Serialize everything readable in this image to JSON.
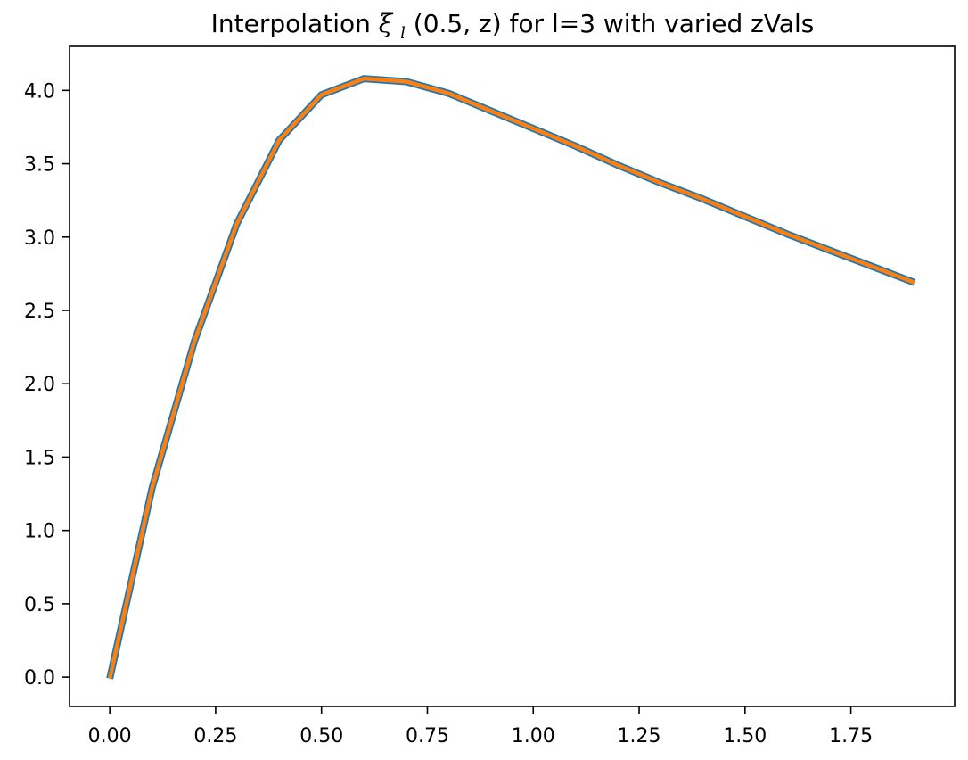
{
  "chart_data": {
    "type": "line",
    "title": {
      "prefix": "Interpolation ",
      "xi": "ξ",
      "sub": "l",
      "args": "(0.5, z)",
      "suffix": " for l=3 with varied zVals"
    },
    "xlabel": "",
    "ylabel": "",
    "xlim": [
      -0.095,
      1.995
    ],
    "ylim": [
      -0.2,
      4.3
    ],
    "xticks": [
      0.0,
      0.25,
      0.5,
      0.75,
      1.0,
      1.25,
      1.5,
      1.75
    ],
    "xtick_labels": [
      "0.00",
      "0.25",
      "0.50",
      "0.75",
      "1.00",
      "1.25",
      "1.50",
      "1.75"
    ],
    "yticks": [
      0.0,
      0.5,
      1.0,
      1.5,
      2.0,
      2.5,
      3.0,
      3.5,
      4.0
    ],
    "ytick_labels": [
      "0.0",
      "0.5",
      "1.0",
      "1.5",
      "2.0",
      "2.5",
      "3.0",
      "3.5",
      "4.0"
    ],
    "grid": false,
    "legend": "none",
    "series": [
      {
        "color": "#1f77b4",
        "x": [
          0.0,
          0.1,
          0.2,
          0.3,
          0.4,
          0.5,
          0.6,
          0.7,
          0.8,
          0.9,
          1.0,
          1.1,
          1.2,
          1.3,
          1.4,
          1.5,
          1.6,
          1.7,
          1.8,
          1.9
        ],
        "y": [
          -0.01,
          1.29,
          2.29,
          3.09,
          3.66,
          3.97,
          4.08,
          4.06,
          3.98,
          3.86,
          3.74,
          3.62,
          3.49,
          3.37,
          3.26,
          3.14,
          3.02,
          2.91,
          2.8,
          2.69
        ]
      },
      {
        "color": "#ff7f0e",
        "x": [
          0.0,
          0.1,
          0.2,
          0.3,
          0.4,
          0.5,
          0.6,
          0.7,
          0.8,
          0.9,
          1.0,
          1.1,
          1.2,
          1.3,
          1.4,
          1.5,
          1.6,
          1.7,
          1.8,
          1.9
        ],
        "y": [
          -0.01,
          1.29,
          2.29,
          3.09,
          3.66,
          3.97,
          4.08,
          4.06,
          3.98,
          3.86,
          3.74,
          3.62,
          3.49,
          3.37,
          3.26,
          3.14,
          3.02,
          2.91,
          2.8,
          2.69
        ]
      }
    ]
  }
}
